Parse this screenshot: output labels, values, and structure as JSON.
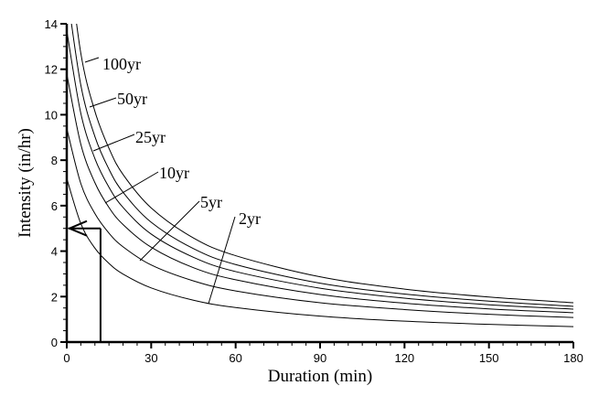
{
  "chart_data": {
    "type": "line",
    "title": "",
    "xlabel": "Duration (min)",
    "ylabel": "Intensity (in/hr)",
    "xlim": [
      0,
      180
    ],
    "ylim": [
      0,
      14
    ],
    "xticks": [
      0,
      30,
      60,
      90,
      120,
      150,
      180
    ],
    "yticks": [
      0,
      2,
      4,
      6,
      8,
      10,
      12,
      14
    ],
    "grid": false,
    "x": [
      0,
      5,
      10,
      15,
      20,
      30,
      45,
      60,
      90,
      120,
      150,
      180
    ],
    "series": [
      {
        "name": "2yr",
        "label": "2yr",
        "values": [
          7.2,
          5.21,
          4.13,
          3.46,
          2.99,
          2.38,
          1.84,
          1.52,
          1.14,
          0.92,
          0.78,
          0.68
        ]
      },
      {
        "name": "5yr",
        "label": "5yr",
        "values": [
          9.4,
          6.97,
          5.65,
          4.79,
          4.19,
          3.39,
          2.69,
          2.25,
          1.73,
          1.43,
          1.22,
          1.08
        ]
      },
      {
        "name": "10yr",
        "label": "10yr",
        "values": [
          11.8,
          8.7,
          7.01,
          5.92,
          5.17,
          4.17,
          3.27,
          2.74,
          2.09,
          1.71,
          1.46,
          1.29
        ]
      },
      {
        "name": "25yr",
        "label": "25yr",
        "values": [
          13.7,
          10.06,
          8.07,
          6.81,
          5.92,
          4.75,
          3.73,
          3.1,
          2.37,
          1.93,
          1.64,
          1.45
        ]
      },
      {
        "name": "50yr",
        "label": "50yr",
        "values": [
          15.5,
          11.3,
          9.04,
          7.6,
          6.59,
          5.27,
          4.11,
          3.41,
          2.59,
          2.11,
          1.8,
          1.57
        ]
      },
      {
        "name": "100yr",
        "label": "100yr",
        "values": [
          17.5,
          12.7,
          10.15,
          8.52,
          7.37,
          5.9,
          4.58,
          3.8,
          2.87,
          2.33,
          1.98,
          1.73
        ]
      }
    ],
    "annotation": {
      "description_duration": 12,
      "description_intensity": 5
    }
  }
}
